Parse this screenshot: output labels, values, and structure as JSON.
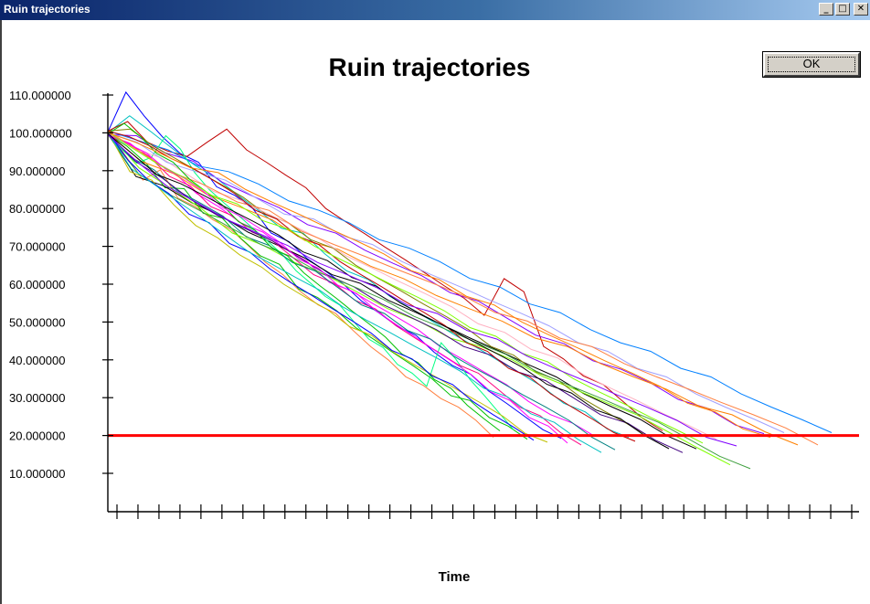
{
  "window": {
    "title": "Ruin trajectories",
    "controls": {
      "minimize": "_",
      "maximize": "□",
      "close": "✕"
    }
  },
  "ok_button": {
    "label": "OK"
  },
  "chart_data": {
    "type": "line",
    "title": "Ruin trajectories",
    "xlabel": "Time",
    "ylabel": "",
    "y_ticks": [
      "110.000000",
      "100.000000",
      "90.000000",
      "80.000000",
      "70.000000",
      "60.000000",
      "50.000000",
      "40.000000",
      "30.000000",
      "20.000000",
      "10.000000"
    ],
    "ylim": [
      0,
      110
    ],
    "x_tick_count": 36,
    "x_tick_labels": [],
    "threshold": {
      "value": 20,
      "color": "#ff0000"
    },
    "grid": false,
    "legend": "none",
    "series_colors": [
      "#ff8040",
      "#00c000",
      "#0000ff",
      "#ff00ff",
      "#00c0c0",
      "#c00000",
      "#000000",
      "#80ff00",
      "#8000ff",
      "#ff8000",
      "#0080ff",
      "#00ff80",
      "#c0c000",
      "#ff0080",
      "#008080",
      "#808000",
      "#400080",
      "#ffb0c0",
      "#40a040",
      "#a0a0ff"
    ],
    "series": [
      {
        "values": [
          100,
          94,
          88,
          90,
          83,
          80,
          77,
          75,
          70,
          66,
          62,
          58,
          55,
          52,
          48,
          43,
          40,
          36,
          33,
          30,
          27,
          24,
          20
        ]
      },
      {
        "values": [
          100,
          96,
          92,
          86,
          85,
          79,
          77,
          72,
          68,
          65,
          59,
          56,
          53,
          49,
          45,
          42,
          38,
          35,
          31,
          29,
          25,
          22,
          19
        ]
      },
      {
        "values": [
          100,
          111,
          104,
          99,
          95,
          92,
          86,
          83,
          80,
          74,
          71,
          67,
          63,
          60,
          56,
          52,
          49,
          46,
          42,
          39,
          36,
          32,
          28,
          25,
          22,
          19
        ]
      },
      {
        "values": [
          100,
          97,
          93,
          89,
          84,
          81,
          76,
          74,
          69,
          66,
          61,
          58,
          55,
          51,
          48,
          44,
          40,
          37,
          33,
          29,
          26,
          23,
          20
        ]
      },
      {
        "values": [
          100,
          105,
          100,
          96,
          91,
          88,
          84,
          79,
          75,
          73,
          68,
          64,
          61,
          57,
          53,
          50,
          47,
          43,
          40,
          36,
          33,
          29,
          26,
          22,
          19
        ]
      },
      {
        "values": [
          100,
          103,
          98,
          95,
          94,
          97,
          101,
          96,
          92,
          89,
          85,
          80,
          77,
          73,
          70,
          66,
          63,
          60,
          56,
          52,
          61,
          58,
          44,
          40,
          36,
          33,
          29,
          25,
          21
        ]
      },
      {
        "values": [
          100,
          88,
          86,
          82,
          78,
          74,
          70,
          67,
          63,
          60,
          56,
          52,
          49,
          46,
          42,
          39,
          35,
          31,
          28,
          24,
          20,
          16
        ]
      },
      {
        "values": [
          100,
          91,
          85,
          80,
          74,
          70,
          66,
          62,
          58,
          54,
          50,
          46,
          43,
          40,
          36,
          32,
          29,
          25,
          21,
          17,
          12
        ]
      },
      {
        "values": [
          100,
          99,
          95,
          92,
          87,
          84,
          80,
          76,
          73,
          69,
          66,
          62,
          58,
          55,
          51,
          47,
          44,
          40,
          37,
          34,
          30,
          27,
          23,
          20
        ]
      },
      {
        "values": [
          100,
          93,
          89,
          84,
          80,
          77,
          72,
          69,
          65,
          61,
          57,
          54,
          50,
          46,
          43,
          39,
          36,
          32,
          28,
          25,
          21,
          18
        ]
      },
      {
        "values": [
          100,
          98,
          96,
          91,
          90,
          86,
          82,
          80,
          76,
          72,
          69,
          66,
          62,
          59,
          55,
          52,
          48,
          45,
          42,
          38,
          35,
          31,
          28,
          24,
          21
        ]
      },
      {
        "values": [
          100,
          95,
          92,
          94,
          99,
          96,
          89,
          85,
          82,
          78,
          75,
          71,
          68,
          64,
          60,
          57,
          54,
          50,
          46,
          43,
          39,
          36,
          33,
          45,
          40,
          35,
          30,
          26,
          22
        ]
      },
      {
        "values": [
          100,
          90,
          87,
          81,
          76,
          72,
          68,
          64,
          60,
          57,
          53,
          49,
          46,
          42,
          39,
          35,
          32,
          28,
          25,
          21,
          18
        ]
      },
      {
        "values": [
          100,
          97,
          94,
          88,
          86,
          81,
          78,
          74,
          71,
          67,
          63,
          60,
          56,
          53,
          49,
          46,
          42,
          39,
          36,
          32,
          28,
          25,
          21,
          17
        ]
      },
      {
        "values": [
          100,
          94,
          90,
          85,
          81,
          78,
          73,
          70,
          66,
          63,
          59,
          55,
          52,
          48,
          45,
          41,
          38,
          34,
          31,
          27,
          24,
          20,
          16
        ]
      },
      {
        "values": [
          100,
          101,
          97,
          93,
          90,
          86,
          83,
          79,
          76,
          72,
          69,
          65,
          62,
          58,
          55,
          51,
          48,
          44,
          41,
          37,
          34,
          30,
          27,
          23,
          20
        ]
      },
      {
        "values": [
          100,
          92,
          88,
          83,
          78,
          75,
          71,
          67,
          63,
          59,
          55,
          51,
          48,
          44,
          41,
          37,
          34,
          30,
          26,
          23,
          19,
          15
        ]
      },
      {
        "values": [
          100,
          96,
          93,
          89,
          85,
          82,
          79,
          75,
          72,
          68,
          64,
          61,
          57,
          54,
          50,
          47,
          43,
          40,
          36,
          33,
          29,
          26,
          22,
          19
        ]
      },
      {
        "values": [
          100,
          89,
          84,
          79,
          75,
          71,
          67,
          63,
          59,
          56,
          52,
          48,
          45,
          41,
          37,
          34,
          30,
          27,
          23,
          19,
          15,
          11
        ]
      },
      {
        "values": [
          100,
          98,
          92,
          90,
          87,
          83,
          79,
          77,
          73,
          70,
          66,
          63,
          59,
          56,
          52,
          49,
          45,
          42,
          38,
          35,
          31,
          28,
          24,
          21
        ]
      },
      {
        "values": [
          100,
          95,
          90,
          86,
          82,
          79,
          74,
          71,
          67,
          64,
          60,
          57,
          53,
          50,
          46,
          43,
          39,
          36,
          32,
          29,
          25,
          22,
          18
        ]
      },
      {
        "values": [
          100,
          102,
          99,
          95,
          92,
          88,
          84,
          81,
          77,
          74,
          70,
          67,
          63,
          60,
          56,
          53,
          49,
          46,
          42,
          39,
          35,
          32,
          28,
          25,
          21
        ]
      },
      {
        "values": [
          100,
          93,
          87,
          84,
          79,
          76,
          71,
          68,
          64,
          61,
          57,
          54,
          50,
          47,
          43,
          40,
          36,
          33,
          29,
          26,
          22,
          19
        ]
      },
      {
        "values": [
          100,
          97,
          95,
          90,
          88,
          85,
          80,
          78,
          74,
          71,
          67,
          64,
          60,
          57,
          53,
          50,
          46,
          43,
          39,
          36,
          32,
          29,
          25,
          22,
          18
        ]
      },
      {
        "values": [
          100,
          91,
          86,
          82,
          77,
          73,
          69,
          65,
          62,
          58,
          54,
          51,
          47,
          44,
          40,
          37,
          33,
          30,
          26,
          23,
          19,
          16
        ]
      },
      {
        "values": [
          100,
          99,
          97,
          93,
          91,
          87,
          84,
          80,
          77,
          73,
          70,
          66,
          63,
          59,
          56,
          52,
          49,
          45,
          42,
          38,
          35,
          31,
          28,
          24,
          21,
          18
        ]
      },
      {
        "values": [
          100,
          94,
          89,
          87,
          83,
          80,
          76,
          73,
          69,
          66,
          62,
          59,
          55,
          52,
          48,
          45,
          41,
          38,
          34,
          31,
          27,
          24,
          20,
          17
        ]
      },
      {
        "values": [
          100,
          96,
          91,
          88,
          84,
          81,
          77,
          74,
          70,
          67,
          63,
          60,
          56,
          53,
          49,
          46,
          42,
          39,
          35,
          32,
          28,
          25,
          21,
          18
        ]
      },
      {
        "values": [
          100,
          92,
          86,
          81,
          77,
          74,
          70,
          66,
          62,
          59,
          55,
          52,
          48,
          45,
          41,
          38,
          34,
          31,
          27,
          24,
          20,
          17
        ]
      },
      {
        "values": [
          100,
          98,
          94,
          91,
          89,
          85,
          82,
          78,
          75,
          71,
          68,
          64,
          61,
          57,
          54,
          50,
          47,
          43,
          40,
          36,
          33,
          29,
          26,
          22,
          19
        ]
      }
    ]
  }
}
